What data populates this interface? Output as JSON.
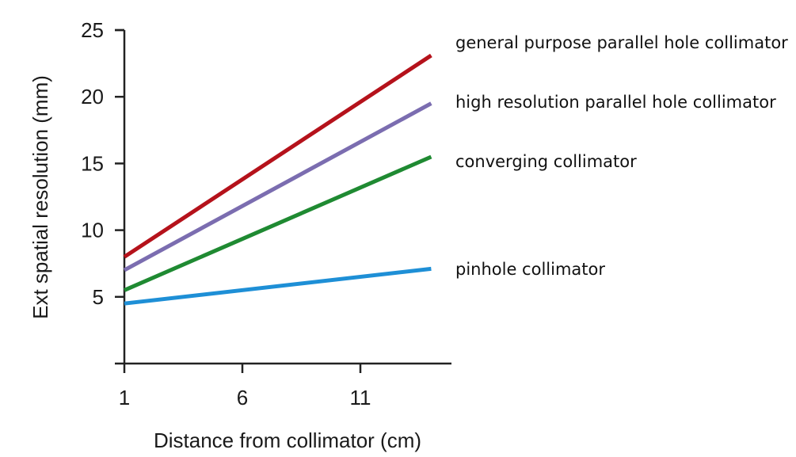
{
  "chart_data": {
    "type": "line",
    "xlabel": "Distance from collimator (cm)",
    "ylabel": "Ext spatial resolution (mm)",
    "xlim": [
      1,
      15
    ],
    "ylim": [
      0,
      25
    ],
    "xticks": [
      1,
      6,
      11
    ],
    "yticks": [
      5,
      10,
      15,
      20,
      25
    ],
    "grid": false,
    "legend": "right",
    "series": [
      {
        "name": "general purpose parallel hole collimator",
        "color": "#b5121b",
        "x": [
          1,
          14
        ],
        "y": [
          8.0,
          23.1
        ]
      },
      {
        "name": "high resolution parallel hole collimator",
        "color": "#7b6db0",
        "x": [
          1,
          14
        ],
        "y": [
          7.0,
          19.5
        ]
      },
      {
        "name": "converging collimator",
        "color": "#1f8a32",
        "x": [
          1,
          14
        ],
        "y": [
          5.5,
          15.5
        ]
      },
      {
        "name": "pinhole collimator",
        "color": "#1e8fd6",
        "x": [
          1,
          14
        ],
        "y": [
          4.5,
          7.1
        ]
      }
    ]
  }
}
